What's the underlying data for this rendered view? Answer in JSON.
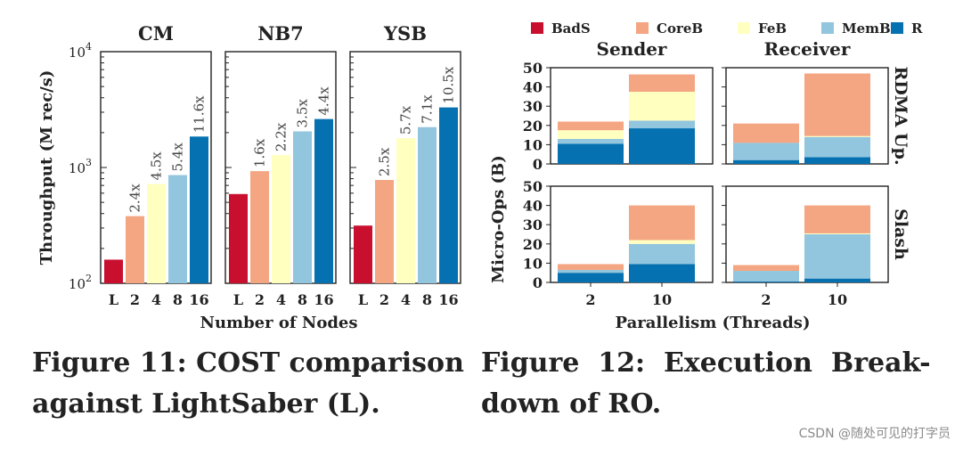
{
  "colors": {
    "BadS": "#c8102e",
    "CoreB": "#f4a582",
    "FeB": "#ffffc0",
    "MemB": "#92c5de",
    "R": "#0571b0",
    "label": "#444444",
    "axis": "#222222"
  },
  "chart_data": [
    {
      "type": "bar",
      "id": "fig11",
      "yscale": "log",
      "ylim": [
        100,
        10000
      ],
      "ylabel": "Throughput (M rec/s)",
      "xlabel": "Number of Nodes",
      "yticks": [
        {
          "value": 100,
          "label": "10",
          "exp": "2"
        },
        {
          "value": 1000,
          "label": "10",
          "exp": "3"
        },
        {
          "value": 10000,
          "label": "10",
          "exp": "4"
        }
      ],
      "categories": [
        "L",
        "2",
        "4",
        "8",
        "16"
      ],
      "bar_colors": [
        "BadS",
        "CoreB",
        "FeB",
        "MemB",
        "R"
      ],
      "panels": [
        {
          "title": "CM",
          "values": [
            160,
            380,
            720,
            860,
            1850
          ],
          "labels": [
            "",
            "2.4x",
            "4.5x",
            "5.4x",
            "11.6x"
          ]
        },
        {
          "title": "NB7",
          "values": [
            590,
            930,
            1280,
            2050,
            2620
          ],
          "labels": [
            "",
            "1.6x",
            "2.2x",
            "3.5x",
            "4.4x"
          ]
        },
        {
          "title": "YSB",
          "values": [
            315,
            780,
            1790,
            2230,
            3300
          ],
          "labels": [
            "",
            "2.5x",
            "5.7x",
            "7.1x",
            "10.5x"
          ]
        }
      ]
    },
    {
      "type": "bar",
      "id": "fig12",
      "stacked": true,
      "ylabel": "Micro-Ops (B)",
      "xlabel": "Parallelism (Threads)",
      "ylim": [
        0,
        50
      ],
      "yticks": [
        "0",
        "10",
        "20",
        "30",
        "40",
        "50"
      ],
      "categories": [
        "2",
        "10"
      ],
      "legend": [
        "BadS",
        "CoreB",
        "FeB",
        "MemB",
        "R"
      ],
      "col_titles": [
        "Sender",
        "Receiver"
      ],
      "row_titles": [
        "RDMA Up.",
        "Slash"
      ],
      "panels": [
        {
          "row": 0,
          "col": 0,
          "bars": [
            {
              "BadS": 0,
              "R": 10.5,
              "MemB": 2.5,
              "FeB": 4.5,
              "CoreB": 4.5
            },
            {
              "BadS": 0,
              "R": 18.5,
              "MemB": 4.0,
              "FeB": 15.0,
              "CoreB": 9.0
            }
          ]
        },
        {
          "row": 0,
          "col": 1,
          "bars": [
            {
              "BadS": 0,
              "R": 2.0,
              "MemB": 9.0,
              "FeB": 0,
              "CoreB": 10.0
            },
            {
              "BadS": 0,
              "R": 3.5,
              "MemB": 10.5,
              "FeB": 0.5,
              "CoreB": 32.5
            }
          ]
        },
        {
          "row": 1,
          "col": 0,
          "bars": [
            {
              "BadS": 0,
              "R": 5.0,
              "MemB": 1.5,
              "FeB": 0,
              "CoreB": 3.0
            },
            {
              "BadS": 0,
              "R": 9.5,
              "MemB": 10.5,
              "FeB": 2.0,
              "CoreB": 18.0
            }
          ]
        },
        {
          "row": 1,
          "col": 1,
          "bars": [
            {
              "BadS": 0,
              "R": 0.5,
              "MemB": 5.5,
              "FeB": 0,
              "CoreB": 3.0
            },
            {
              "BadS": 0,
              "R": 2.0,
              "MemB": 23.0,
              "FeB": 0.5,
              "CoreB": 14.5
            }
          ]
        }
      ]
    }
  ],
  "captions": {
    "fig11_line1": "Figure 11: COST comparison",
    "fig11_line2": "against LightSaber (L).",
    "fig12_line1": "Figure  12:  Execution  Break-",
    "fig12_line2": "down of RO."
  },
  "watermark": "CSDN @随处可见的打字员"
}
